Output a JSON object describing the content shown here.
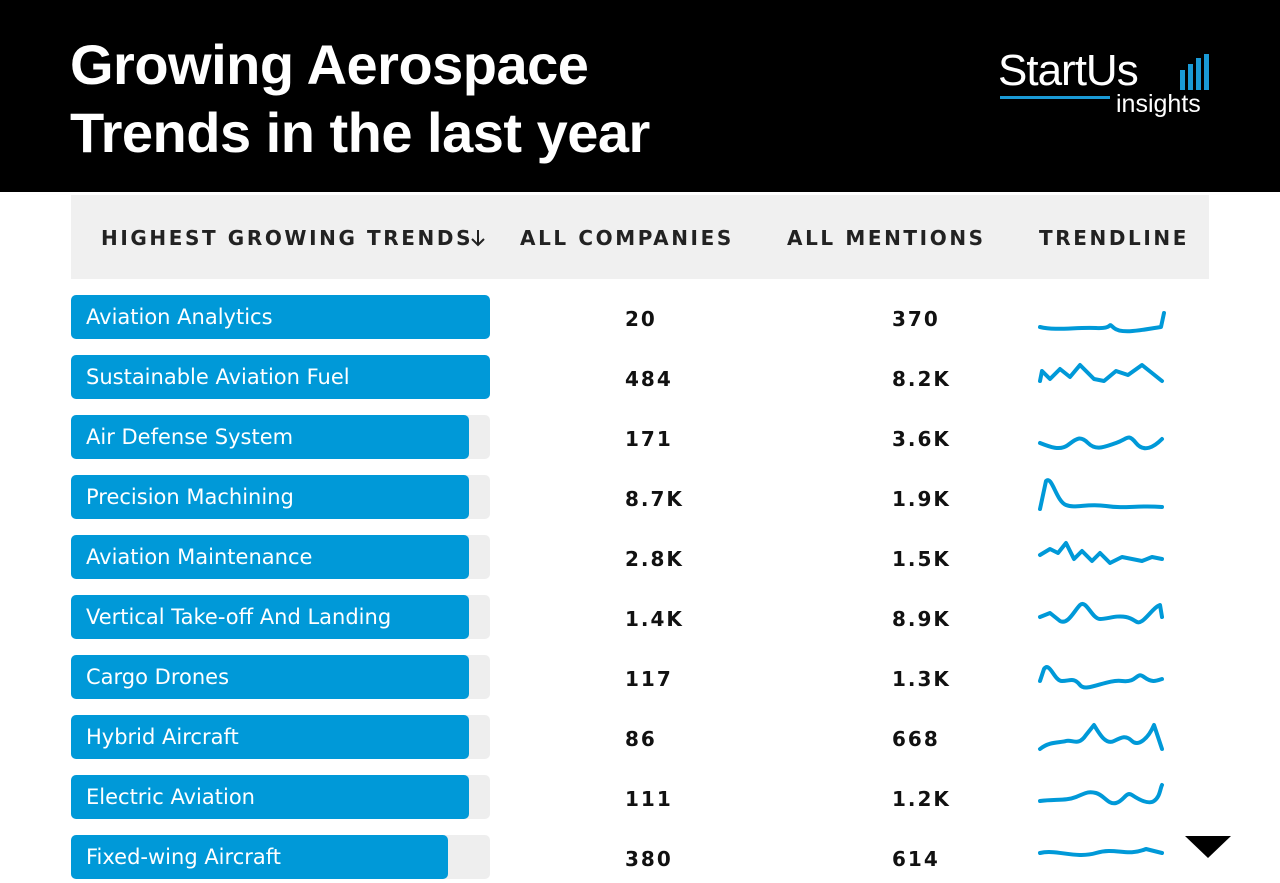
{
  "header": {
    "title_lines": [
      "Growing Aerospace",
      "Trends in the last year"
    ],
    "brand": "StartUs",
    "brand_sub": "insights"
  },
  "table": {
    "columns": [
      "HIGHEST GROWING TRENDS",
      "ALL COMPANIES",
      "ALL MENTIONS",
      "TRENDLINE"
    ],
    "rows": [
      [
        "Aviation Analytics",
        "20",
        "370"
      ],
      [
        "Sustainable Aviation Fuel",
        "484",
        "8.2K"
      ],
      [
        "Air Defense System",
        "171",
        "3.6K"
      ],
      [
        "Precision Machining",
        "8.7K",
        "1.9K"
      ],
      [
        "Aviation Maintenance",
        "2.8K",
        "1.5K"
      ],
      [
        "Vertical Take-off And Landing",
        "1.4K",
        "8.9K"
      ],
      [
        "Cargo Drones",
        "117",
        "1.3K"
      ],
      [
        "Hybrid Aircraft",
        "86",
        "668"
      ],
      [
        "Electric Aviation",
        "111",
        "1.2K"
      ],
      [
        "Fixed-wing Aircraft",
        "380",
        "614"
      ]
    ]
  }
}
